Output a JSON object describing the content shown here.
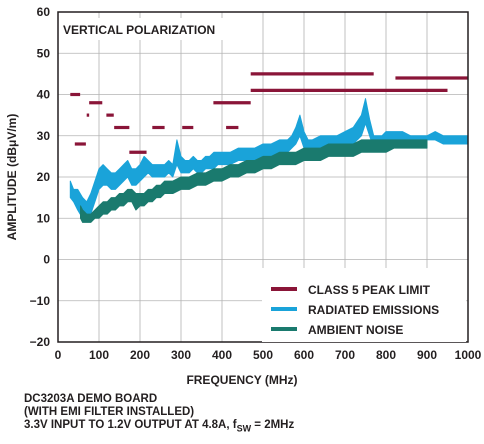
{
  "chart_data": {
    "type": "line",
    "title": "VERTICAL POLARIZATION",
    "xlabel": "FREQUENCY (MHz)",
    "ylabel": "AMPLITUDE (dBμV/m)",
    "xlim": [
      0,
      1000
    ],
    "ylim": [
      -20,
      60
    ],
    "xticks": [
      0,
      100,
      200,
      300,
      400,
      500,
      600,
      700,
      800,
      900,
      1000
    ],
    "yticks": [
      -20,
      -10,
      0,
      10,
      20,
      30,
      40,
      50,
      60
    ],
    "xtick_labels": [
      "0",
      "100",
      "200",
      "300",
      "400",
      "500",
      "600",
      "700",
      "800",
      "900",
      "1000"
    ],
    "ytick_labels": [
      "−20",
      "−10",
      "0",
      "10",
      "20",
      "30",
      "40",
      "50",
      "60"
    ],
    "grid": true,
    "legend_position": "bottom-right",
    "series": [
      {
        "name": "CLASS 5 PEAK LIMIT",
        "color": "#8a1538",
        "kind": "segments",
        "segments": [
          {
            "x": [
              30,
              54
            ],
            "y": 40
          },
          {
            "x": [
              41,
              68
            ],
            "y": 28
          },
          {
            "x": [
              70,
              76
            ],
            "y": 35
          },
          {
            "x": [
              76,
              108
            ],
            "y": 38
          },
          {
            "x": [
              118,
              136
            ],
            "y": 35
          },
          {
            "x": [
              137,
              174
            ],
            "y": 32
          },
          {
            "x": [
              174,
              216
            ],
            "y": 26
          },
          {
            "x": [
              230,
              260
            ],
            "y": 32
          },
          {
            "x": [
              303,
              330
            ],
            "y": 32
          },
          {
            "x": [
              379,
              470
            ],
            "y": 38
          },
          {
            "x": [
              410,
              440
            ],
            "y": 32
          },
          {
            "x": [
              470,
              770
            ],
            "y": 45
          },
          {
            "x": [
              470,
              950
            ],
            "y": 41
          },
          {
            "x": [
              823,
              1000
            ],
            "y": 44
          }
        ]
      },
      {
        "name": "RADIATED EMISSIONS",
        "color": "#1aa3d9",
        "kind": "band",
        "x": [
          30,
          38,
          48,
          60,
          70,
          80,
          90,
          100,
          110,
          120,
          130,
          140,
          150,
          160,
          170,
          180,
          190,
          200,
          210,
          220,
          230,
          240,
          250,
          260,
          270,
          280,
          290,
          300,
          310,
          320,
          330,
          340,
          350,
          360,
          370,
          380,
          390,
          400,
          420,
          440,
          460,
          480,
          500,
          520,
          540,
          560,
          570,
          580,
          590,
          600,
          610,
          620,
          640,
          660,
          680,
          700,
          720,
          740,
          750,
          760,
          770,
          780,
          790,
          800,
          820,
          840,
          860,
          880,
          900,
          920,
          940,
          960,
          980,
          1000
        ],
        "low": [
          15,
          14,
          12,
          10,
          10,
          11,
          14,
          17,
          18,
          18,
          17,
          17,
          18,
          19,
          20,
          18,
          18,
          19,
          20,
          21,
          20,
          20,
          20,
          20,
          21,
          20,
          23,
          21,
          21,
          21,
          22,
          21,
          21,
          22,
          22,
          22,
          23,
          23,
          23,
          24,
          24,
          24,
          25,
          25,
          26,
          26,
          27,
          28,
          30,
          27,
          26,
          26,
          27,
          27,
          27,
          27,
          28,
          30,
          33,
          30,
          27,
          27,
          28,
          28,
          28,
          28,
          28,
          28,
          29,
          29,
          28,
          28,
          28,
          28
        ],
        "high": [
          19,
          17,
          17,
          15,
          14,
          16,
          19,
          22,
          23,
          22,
          21,
          21,
          22,
          23,
          24,
          22,
          22,
          23,
          25,
          24,
          23,
          23,
          23,
          23,
          24,
          23,
          29,
          25,
          24,
          24,
          25,
          24,
          24,
          25,
          25,
          26,
          26,
          26,
          26,
          27,
          27,
          27,
          28,
          28,
          29,
          29,
          30,
          32,
          35,
          31,
          29,
          29,
          30,
          30,
          30,
          31,
          32,
          35,
          39,
          34,
          30,
          30,
          30,
          31,
          31,
          31,
          30,
          30,
          30,
          31,
          30,
          30,
          30,
          30
        ]
      },
      {
        "name": "AMBIENT NOISE",
        "color": "#1a7a6e",
        "kind": "band",
        "x": [
          55,
          60,
          70,
          80,
          90,
          100,
          110,
          120,
          130,
          140,
          150,
          160,
          170,
          180,
          190,
          200,
          210,
          220,
          230,
          240,
          250,
          260,
          280,
          300,
          320,
          340,
          360,
          380,
          400,
          420,
          440,
          460,
          480,
          500,
          520,
          540,
          560,
          580,
          600,
          620,
          640,
          660,
          680,
          700,
          720,
          740,
          760,
          780,
          800,
          820,
          840,
          860,
          880,
          900
        ],
        "low": [
          10,
          9,
          9,
          9,
          10,
          10,
          11,
          11,
          12,
          12,
          13,
          13,
          14,
          14,
          12,
          13,
          13,
          14,
          14,
          15,
          15,
          16,
          16,
          17,
          17,
          18,
          18,
          19,
          19,
          20,
          20,
          21,
          21,
          22,
          22,
          23,
          23,
          23,
          24,
          24,
          24,
          25,
          25,
          25,
          25,
          26,
          26,
          26,
          26,
          27,
          27,
          27,
          27,
          27
        ],
        "high": [
          13,
          12,
          11,
          11,
          12,
          13,
          14,
          14,
          15,
          15,
          16,
          16,
          17,
          17,
          16,
          16,
          16,
          17,
          17,
          18,
          18,
          19,
          19,
          20,
          20,
          21,
          21,
          22,
          22,
          23,
          23,
          24,
          24,
          25,
          25,
          26,
          26,
          26,
          27,
          27,
          27,
          28,
          28,
          28,
          28,
          29,
          29,
          29,
          29,
          29,
          29,
          29,
          29,
          29
        ]
      }
    ]
  },
  "caption": {
    "line1": "DC3203A DEMO BOARD",
    "line2": "(WITH EMI FILTER INSTALLED)",
    "line3_prefix": "3.3V INPUT TO 1.2V OUTPUT AT 4.8A, f",
    "line3_sub": "SW",
    "line3_suffix": " = 2MHz"
  }
}
